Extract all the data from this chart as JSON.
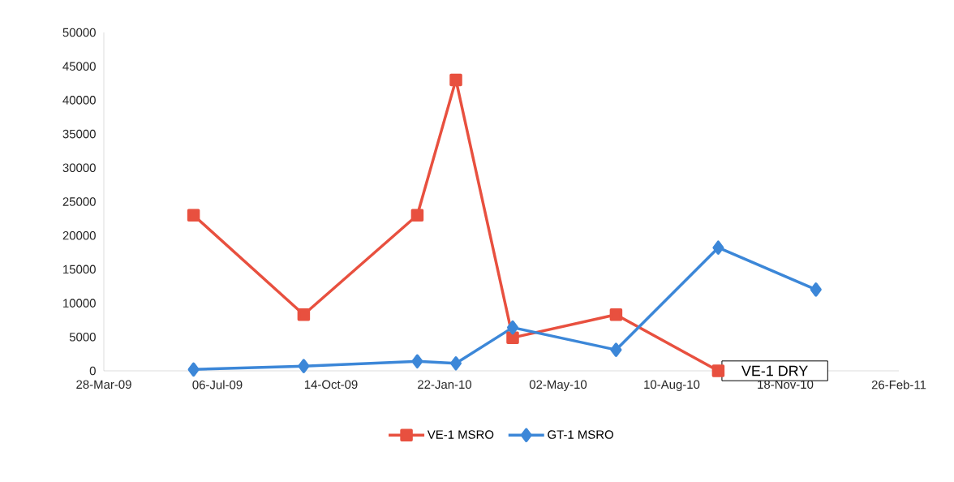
{
  "chart_data": {
    "type": "line",
    "x": [
      "2009-06-15",
      "2009-09-20",
      "2009-12-29",
      "2010-02-01",
      "2010-03-23",
      "2010-06-22",
      "2010-09-20",
      "2010-12-15"
    ],
    "series": [
      {
        "name": "VE-1 MSRO",
        "color": "#e8503f",
        "marker": "square",
        "values": [
          23000,
          8300,
          23000,
          43000,
          4900,
          8300,
          0,
          null
        ]
      },
      {
        "name": "GT-1 MSRO",
        "color": "#3c87d8",
        "marker": "diamond",
        "values": [
          200,
          700,
          1400,
          1100,
          6400,
          3100,
          18200,
          12000
        ]
      }
    ],
    "xlim": [
      "2009-03-28",
      "2011-02-26"
    ],
    "xticks": [
      {
        "value": "2009-03-28",
        "label": "28-Mar-09"
      },
      {
        "value": "2009-07-06",
        "label": "06-Jul-09"
      },
      {
        "value": "2009-10-14",
        "label": "14-Oct-09"
      },
      {
        "value": "2010-01-22",
        "label": "22-Jan-10"
      },
      {
        "value": "2010-05-02",
        "label": "02-May-10"
      },
      {
        "value": "2010-08-10",
        "label": "10-Aug-10"
      },
      {
        "value": "2010-11-18",
        "label": "18-Nov-10"
      },
      {
        "value": "2011-02-26",
        "label": "26-Feb-11"
      }
    ],
    "ylim": [
      0,
      50000
    ],
    "yticks": [
      0,
      5000,
      10000,
      15000,
      20000,
      25000,
      30000,
      35000,
      40000,
      45000,
      50000
    ],
    "annotations": [
      "VE-1 DRY"
    ],
    "legend": "bottom",
    "grid": false,
    "line_style": "solid"
  }
}
